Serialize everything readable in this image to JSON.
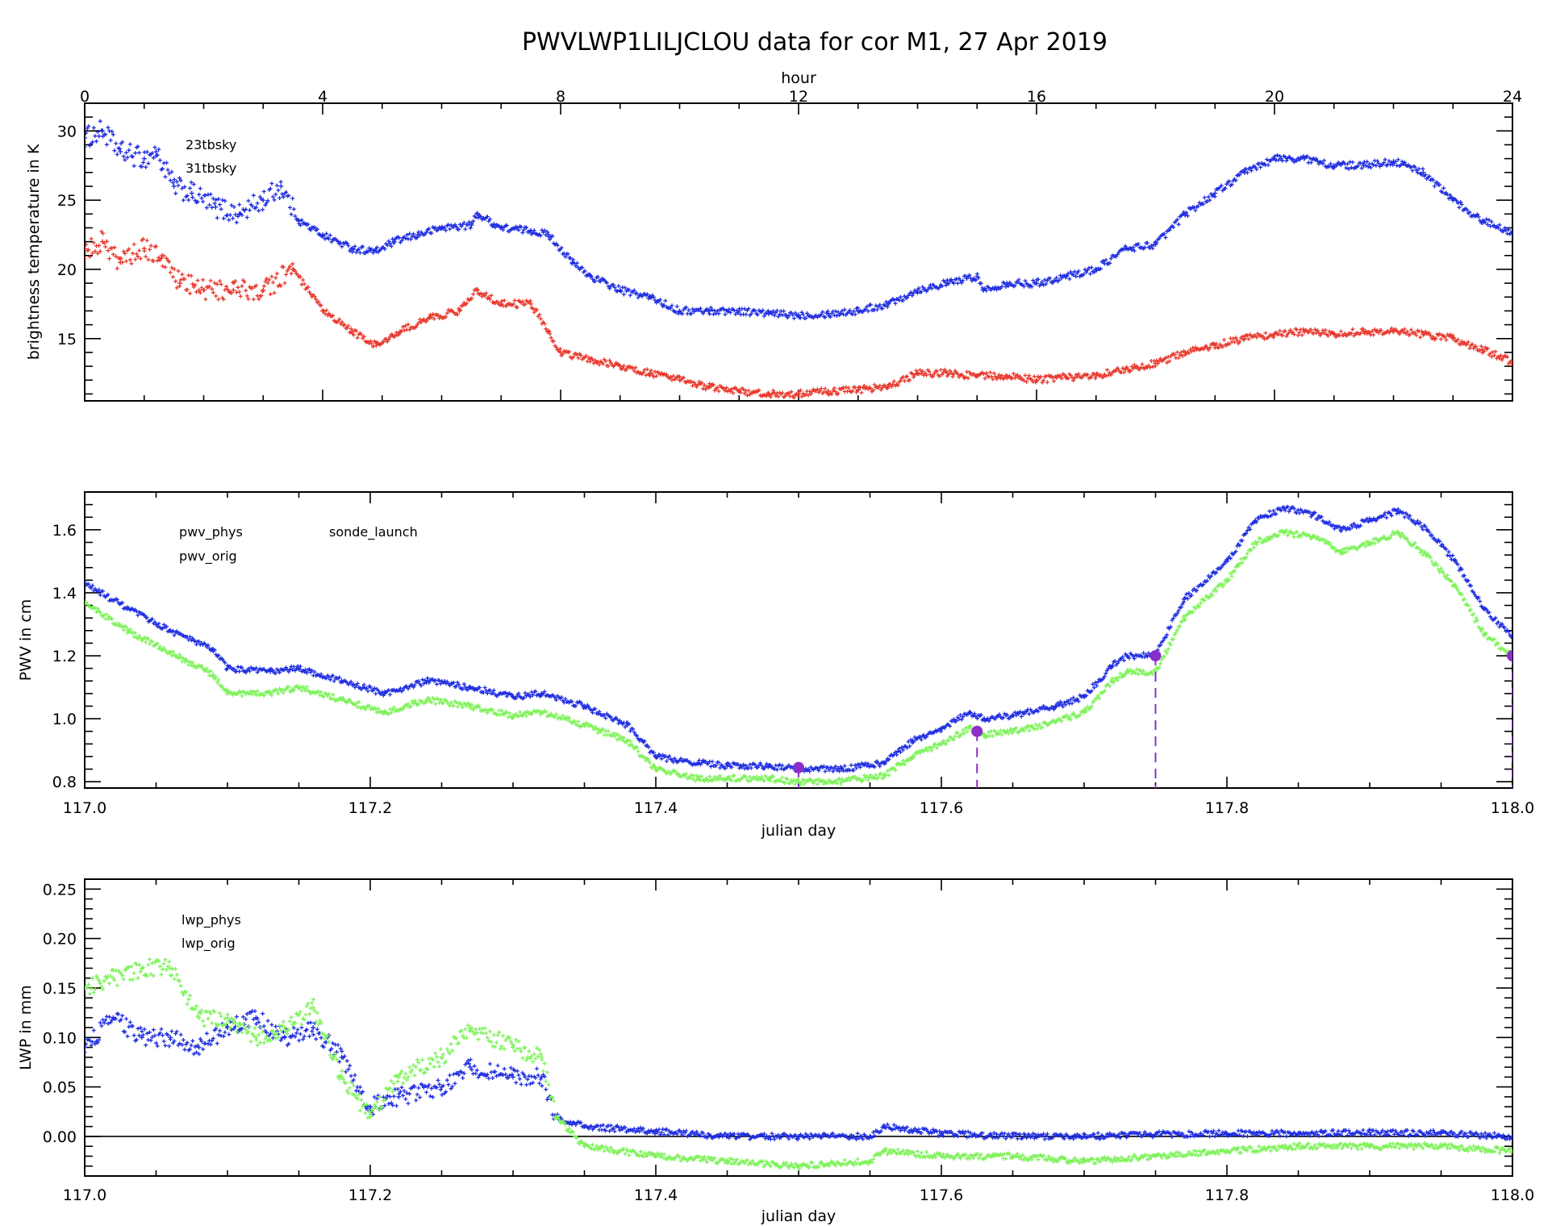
{
  "title": "PWVLWP1LILJCLOU data for cor M1, 27 Apr 2019",
  "colors": {
    "tbsky23": "#1f2de0",
    "tbsky31": "#e8382c",
    "pwv_phys": "#1f2de0",
    "pwv_orig": "#7ef25a",
    "sonde_launch": "#8a2ec8",
    "lwp_phys": "#1f2de0",
    "lwp_orig": "#7ef25a"
  },
  "chart_data": [
    {
      "type": "scatter",
      "panel": "brightness",
      "title": "PWVLWP1LILJCLOU data for cor M1, 27 Apr 2019",
      "xlabel": "hour",
      "ylabel": "brightness temperature in K",
      "xlim": [
        0,
        24
      ],
      "ylim": [
        10.5,
        32
      ],
      "xticks": [
        0,
        4,
        8,
        12,
        16,
        20,
        24
      ],
      "xtick_labels": [
        "0",
        "4",
        "8",
        "12",
        "16",
        "20",
        "24"
      ],
      "yticks": [
        15,
        20,
        25,
        30
      ],
      "ytick_labels": [
        "15",
        "20",
        "25",
        "30"
      ],
      "legend_position": "top-left",
      "series": [
        {
          "name": "23tbsky",
          "color": "#1f2de0",
          "x": [
            0,
            0.3,
            0.6,
            1.0,
            1.2,
            1.5,
            1.8,
            2.2,
            2.6,
            3.0,
            3.3,
            3.6,
            4.0,
            4.5,
            4.9,
            5.2,
            5.6,
            6.0,
            6.5,
            6.6,
            7.0,
            7.5,
            7.8,
            8.2,
            8.5,
            9.0,
            9.5,
            10.0,
            10.5,
            11.0,
            11.5,
            12.0,
            12.5,
            13.0,
            13.5,
            14.0,
            14.5,
            15.0,
            15.1,
            15.5,
            16.0,
            16.5,
            17.0,
            17.5,
            18.0,
            18.5,
            19.0,
            19.5,
            20.0,
            20.5,
            21.0,
            21.5,
            22.0,
            22.5,
            23.0,
            23.5,
            24.0
          ],
          "y": [
            29.5,
            30.0,
            28.5,
            28.0,
            28.5,
            26.0,
            25.5,
            24.5,
            24.0,
            25.0,
            26.0,
            23.5,
            22.5,
            21.5,
            21.3,
            22.0,
            22.5,
            23.0,
            23.2,
            24.0,
            23.0,
            22.8,
            22.5,
            20.5,
            19.5,
            18.5,
            18.0,
            17.0,
            17.0,
            17.0,
            16.8,
            16.7,
            16.8,
            17.0,
            17.5,
            18.5,
            19.0,
            19.5,
            18.5,
            19.0,
            19.0,
            19.5,
            20.0,
            21.5,
            21.8,
            24.0,
            25.5,
            27.0,
            28.0,
            28.0,
            27.5,
            27.5,
            27.8,
            27.0,
            25.0,
            23.5,
            22.7
          ]
        },
        {
          "name": "31tbsky",
          "color": "#e8382c",
          "x": [
            0,
            0.3,
            0.6,
            1.0,
            1.3,
            1.6,
            2.0,
            2.5,
            3.0,
            3.5,
            4.0,
            4.5,
            4.9,
            5.3,
            5.8,
            6.3,
            6.6,
            7.0,
            7.5,
            7.8,
            8.0,
            8.5,
            9.0,
            9.5,
            10.0,
            10.5,
            11.0,
            11.5,
            12.0,
            12.5,
            13.0,
            13.5,
            14.0,
            14.5,
            15.0,
            15.5,
            16.0,
            16.5,
            17.0,
            17.5,
            18.0,
            18.5,
            19.0,
            19.5,
            20.0,
            20.5,
            21.0,
            21.5,
            22.0,
            22.5,
            23.0,
            23.5,
            24.0
          ],
          "y": [
            21.5,
            22.0,
            20.5,
            21.5,
            21.0,
            19.0,
            18.5,
            18.5,
            18.5,
            20.0,
            17.0,
            15.5,
            14.5,
            15.5,
            16.5,
            17.0,
            18.5,
            17.5,
            17.5,
            15.5,
            14.0,
            13.5,
            13.0,
            12.5,
            12.0,
            11.5,
            11.2,
            11.0,
            11.0,
            11.2,
            11.3,
            11.5,
            12.5,
            12.5,
            12.3,
            12.3,
            12.0,
            12.2,
            12.3,
            12.8,
            13.2,
            14.0,
            14.5,
            15.0,
            15.3,
            15.5,
            15.3,
            15.5,
            15.5,
            15.3,
            15.0,
            14.2,
            13.3
          ]
        }
      ]
    },
    {
      "type": "scatter",
      "panel": "pwv",
      "xlabel": "julian day",
      "ylabel": "PWV in cm",
      "xlim": [
        117.0,
        118.0
      ],
      "ylim": [
        0.78,
        1.72
      ],
      "xticks": [
        117.0,
        117.2,
        117.4,
        117.6,
        117.8,
        118.0
      ],
      "xtick_labels": [
        "117.0",
        "117.2",
        "117.4",
        "117.6",
        "117.8",
        "118.0"
      ],
      "yticks": [
        0.8,
        1.0,
        1.2,
        1.4,
        1.6
      ],
      "ytick_labels": [
        "0.8",
        "1.0",
        "1.2",
        "1.4",
        "1.6"
      ],
      "legend_position": "top-left",
      "series": [
        {
          "name": "pwv_phys",
          "color": "#1f2de0",
          "x": [
            117.0,
            117.03,
            117.06,
            117.09,
            117.1,
            117.13,
            117.15,
            117.18,
            117.21,
            117.24,
            117.27,
            117.3,
            117.32,
            117.35,
            117.38,
            117.4,
            117.43,
            117.45,
            117.48,
            117.5,
            117.53,
            117.56,
            117.58,
            117.6,
            117.62,
            117.63,
            117.65,
            117.68,
            117.7,
            117.72,
            117.73,
            117.75,
            117.77,
            117.8,
            117.82,
            117.84,
            117.86,
            117.88,
            117.9,
            117.92,
            117.94,
            117.96,
            117.98,
            118.0
          ],
          "y": [
            1.43,
            1.35,
            1.28,
            1.22,
            1.16,
            1.15,
            1.16,
            1.12,
            1.08,
            1.12,
            1.1,
            1.07,
            1.08,
            1.04,
            0.98,
            0.88,
            0.86,
            0.85,
            0.85,
            0.84,
            0.84,
            0.86,
            0.93,
            0.97,
            1.02,
            1.0,
            1.01,
            1.04,
            1.07,
            1.17,
            1.2,
            1.2,
            1.38,
            1.5,
            1.63,
            1.67,
            1.65,
            1.6,
            1.63,
            1.66,
            1.6,
            1.5,
            1.35,
            1.26
          ]
        },
        {
          "name": "pwv_orig",
          "color": "#7ef25a",
          "x": [
            117.0,
            117.03,
            117.06,
            117.09,
            117.1,
            117.13,
            117.15,
            117.18,
            117.21,
            117.24,
            117.27,
            117.3,
            117.32,
            117.35,
            117.38,
            117.4,
            117.43,
            117.45,
            117.48,
            117.5,
            117.53,
            117.56,
            117.58,
            117.6,
            117.62,
            117.63,
            117.65,
            117.68,
            117.7,
            117.72,
            117.73,
            117.75,
            117.77,
            117.8,
            117.82,
            117.84,
            117.86,
            117.88,
            117.9,
            117.92,
            117.94,
            117.96,
            117.98,
            118.0
          ],
          "y": [
            1.37,
            1.28,
            1.21,
            1.14,
            1.08,
            1.08,
            1.1,
            1.06,
            1.02,
            1.06,
            1.04,
            1.01,
            1.02,
            0.98,
            0.93,
            0.84,
            0.81,
            0.81,
            0.81,
            0.8,
            0.8,
            0.82,
            0.88,
            0.92,
            0.97,
            0.95,
            0.96,
            0.99,
            1.02,
            1.12,
            1.15,
            1.15,
            1.32,
            1.44,
            1.56,
            1.59,
            1.58,
            1.53,
            1.56,
            1.59,
            1.52,
            1.42,
            1.27,
            1.2
          ]
        },
        {
          "name": "sonde_launch",
          "color": "#8a2ec8",
          "x": [
            117.5,
            117.625,
            117.75,
            118.0
          ],
          "y": [
            0.845,
            0.96,
            1.2,
            1.2
          ]
        }
      ]
    },
    {
      "type": "scatter",
      "panel": "lwp",
      "xlabel": "julian day",
      "ylabel": "LWP in mm",
      "xlim": [
        117.0,
        118.0
      ],
      "ylim": [
        -0.04,
        0.26
      ],
      "xticks": [
        117.0,
        117.2,
        117.4,
        117.6,
        117.8,
        118.0
      ],
      "xtick_labels": [
        "117.0",
        "117.2",
        "117.4",
        "117.6",
        "117.8",
        "118.0"
      ],
      "yticks": [
        0.0,
        0.05,
        0.1,
        0.15,
        0.2,
        0.25
      ],
      "ytick_labels": [
        "0.00",
        "0.05",
        "0.10",
        "0.15",
        "0.20",
        "0.25"
      ],
      "legend_position": "top-left",
      "series": [
        {
          "name": "lwp_phys",
          "color": "#1f2de0",
          "x": [
            117.0,
            117.02,
            117.04,
            117.06,
            117.08,
            117.1,
            117.12,
            117.14,
            117.16,
            117.18,
            117.2,
            117.22,
            117.25,
            117.27,
            117.3,
            117.32,
            117.33,
            117.35,
            117.4,
            117.45,
            117.5,
            117.55,
            117.56,
            117.6,
            117.65,
            117.7,
            117.75,
            117.8,
            117.85,
            117.9,
            117.95,
            118.0
          ],
          "y": [
            0.09,
            0.12,
            0.1,
            0.1,
            0.09,
            0.11,
            0.12,
            0.1,
            0.11,
            0.08,
            0.03,
            0.04,
            0.05,
            0.07,
            0.06,
            0.06,
            0.02,
            0.01,
            0.005,
            0.0,
            0.0,
            0.0,
            0.01,
            0.003,
            0.0,
            0.0,
            0.002,
            0.003,
            0.003,
            0.004,
            0.003,
            0.0
          ]
        },
        {
          "name": "lwp_orig",
          "color": "#7ef25a",
          "x": [
            117.0,
            117.02,
            117.04,
            117.06,
            117.08,
            117.1,
            117.12,
            117.14,
            117.16,
            117.18,
            117.2,
            117.22,
            117.25,
            117.27,
            117.3,
            117.32,
            117.33,
            117.35,
            117.4,
            117.45,
            117.5,
            117.55,
            117.56,
            117.6,
            117.65,
            117.7,
            117.75,
            117.8,
            117.85,
            117.9,
            117.95,
            118.0
          ],
          "y": [
            0.15,
            0.16,
            0.17,
            0.17,
            0.12,
            0.12,
            0.1,
            0.11,
            0.13,
            0.06,
            0.02,
            0.06,
            0.08,
            0.11,
            0.09,
            0.08,
            0.02,
            -0.01,
            -0.02,
            -0.025,
            -0.03,
            -0.025,
            -0.015,
            -0.02,
            -0.02,
            -0.025,
            -0.02,
            -0.015,
            -0.01,
            -0.01,
            -0.01,
            -0.015
          ]
        }
      ]
    }
  ]
}
